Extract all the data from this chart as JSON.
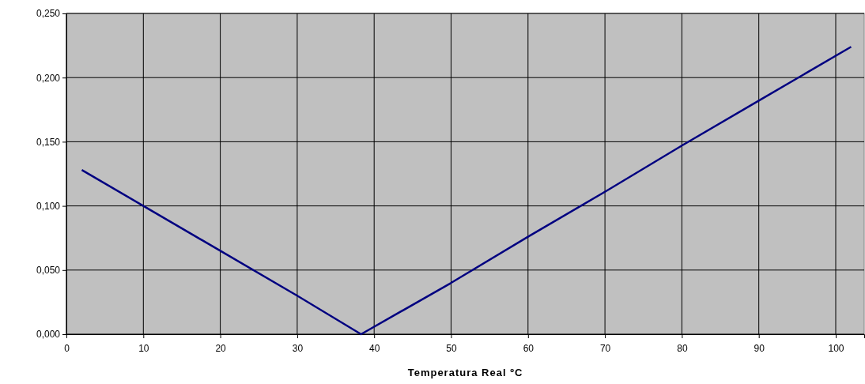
{
  "chart_data": {
    "type": "line",
    "xlabel": "Temperatura Real ºC",
    "x": [
      2,
      10,
      20,
      30,
      38.3,
      50,
      60,
      70,
      80,
      90,
      102
    ],
    "series": [
      {
        "color": "#000080",
        "values": [
          0.128,
          0.1,
          0.065,
          0.03,
          0.0,
          0.04,
          0.076,
          0.111,
          0.147,
          0.182,
          0.224
        ]
      }
    ],
    "xlim": [
      0,
      103.7
    ],
    "xticks": [
      0,
      10,
      20,
      30,
      40,
      50,
      60,
      70,
      80,
      90,
      100
    ],
    "ylim": [
      0,
      0.25
    ],
    "yticks": [
      {
        "value": 0,
        "label": "0,000"
      },
      {
        "value": 0.05,
        "label": "0,050"
      },
      {
        "value": 0.1,
        "label": "0,100"
      },
      {
        "value": 0.15,
        "label": "0,150"
      },
      {
        "value": 0.2,
        "label": "0,200"
      },
      {
        "value": 0.25,
        "label": "0,250"
      }
    ],
    "grid": true,
    "marker": "none",
    "line_style": "solid"
  }
}
